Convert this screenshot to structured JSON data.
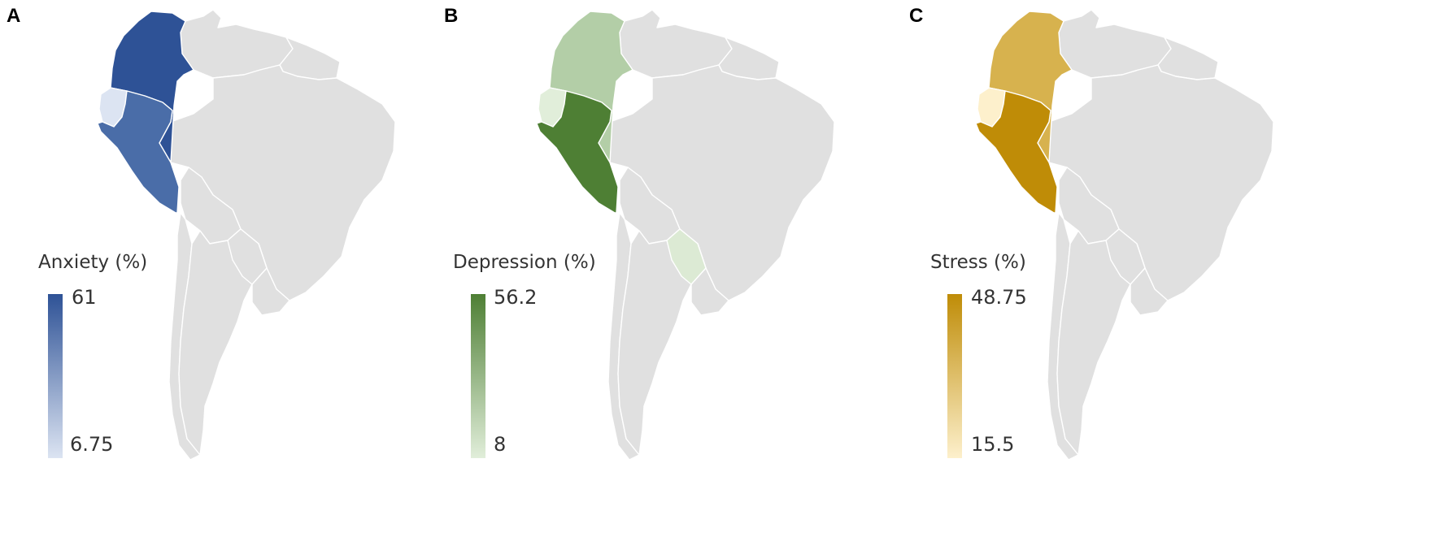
{
  "panels": [
    {
      "letter": "A",
      "legend": {
        "title": "Anxiety (%)",
        "max": "61",
        "min": "6.75",
        "color_max": "#2E5296",
        "color_min": "#DCE4F2"
      },
      "countries": {
        "colombia": "#2E5296",
        "ecuador": "#DCE4F2",
        "peru": "#4A6DA8",
        "paraguay": "#E0E0E0"
      }
    },
    {
      "letter": "B",
      "legend": {
        "title": "Depression (%)",
        "max": "56.2",
        "min": "8",
        "color_max": "#4E7F34",
        "color_min": "#E1EEDA"
      },
      "countries": {
        "colombia": "#B3CEA7",
        "ecuador": "#E1EEDA",
        "peru": "#4E7F34",
        "paraguay": "#DCEAD4"
      }
    },
    {
      "letter": "C",
      "legend": {
        "title": "Stress (%)",
        "max": "48.75",
        "min": "15.5",
        "color_max": "#BF8C07",
        "color_min": "#FDF0CC"
      },
      "countries": {
        "colombia": "#D7B24E",
        "ecuador": "#FDF0CC",
        "peru": "#BF8C07",
        "paraguay": "#E0E0E0"
      }
    }
  ],
  "base_color": "#E0E0E0"
}
